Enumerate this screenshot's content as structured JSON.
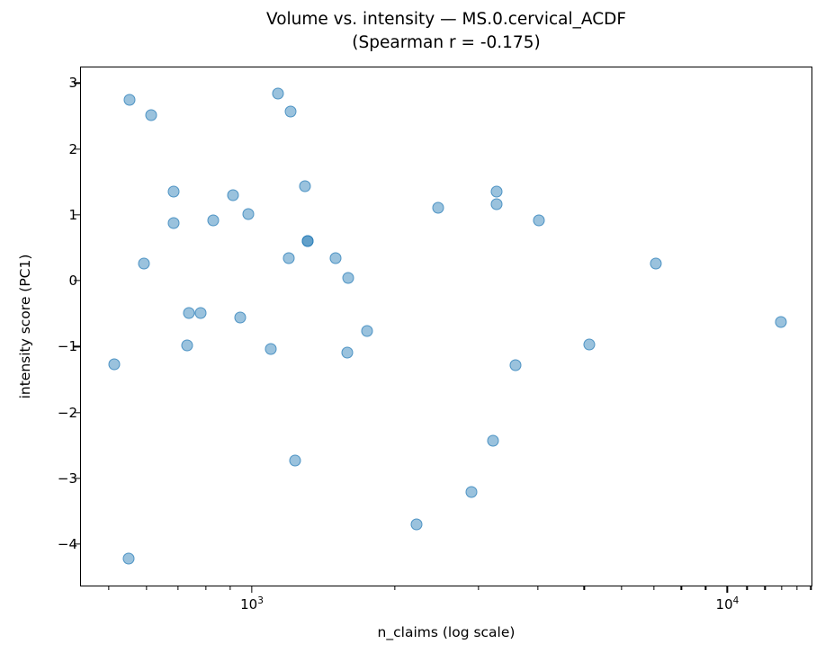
{
  "figure": {
    "title": "Volume vs. intensity — MS.0.cervical_ACDF",
    "subtitle": "(Spearman r = -0.175)"
  },
  "chart_data": {
    "type": "scatter",
    "title": "Volume vs. intensity — MS.0.cervical_ACDF",
    "subtitle": "(Spearman r = -0.175)",
    "xlabel": "n_claims (log scale)",
    "ylabel": "intensity score (PC1)",
    "x_scale": "log",
    "grid": false,
    "legend": false,
    "xlim": [
      435,
      15100
    ],
    "ylim": [
      -4.64,
      3.25
    ],
    "marker_color": "#1f77b4",
    "marker_fill": "rgba(31,119,180,0.45)",
    "marker_edge": "rgba(31,119,180,0.62)",
    "points": [
      [
        511,
        -1.25
      ],
      [
        548,
        -4.21
      ],
      [
        550,
        2.76
      ],
      [
        590,
        0.28
      ],
      [
        610,
        2.52
      ],
      [
        680,
        1.37
      ],
      [
        680,
        0.89
      ],
      [
        727,
        -0.97
      ],
      [
        735,
        -0.48
      ],
      [
        775,
        -0.48
      ],
      [
        825,
        0.93
      ],
      [
        910,
        1.31
      ],
      [
        940,
        -0.54
      ],
      [
        980,
        1.02
      ],
      [
        1090,
        -1.02
      ],
      [
        1130,
        2.85
      ],
      [
        1190,
        0.36
      ],
      [
        1200,
        2.58
      ],
      [
        1225,
        -2.72
      ],
      [
        1290,
        1.45
      ],
      [
        1305,
        0.62
      ],
      [
        1305,
        0.62
      ],
      [
        1490,
        0.35
      ],
      [
        1580,
        -1.08
      ],
      [
        1590,
        0.05
      ],
      [
        1740,
        -0.75
      ],
      [
        2210,
        -3.69
      ],
      [
        2455,
        1.12
      ],
      [
        2885,
        -3.19
      ],
      [
        3205,
        -2.41
      ],
      [
        3260,
        1.37
      ],
      [
        3260,
        1.17
      ],
      [
        3575,
        -1.27
      ],
      [
        4000,
        0.93
      ],
      [
        5110,
        -0.96
      ],
      [
        7055,
        0.27
      ],
      [
        12880,
        -0.61
      ]
    ],
    "y_ticks": [
      {
        "value": 3,
        "label": "3"
      },
      {
        "value": 2,
        "label": "2"
      },
      {
        "value": 1,
        "label": "1"
      },
      {
        "value": 0,
        "label": "0"
      },
      {
        "value": -1,
        "label": "−1"
      },
      {
        "value": -2,
        "label": "−2"
      },
      {
        "value": -3,
        "label": "−3"
      },
      {
        "value": -4,
        "label": "−4"
      }
    ],
    "x_major_ticks": [
      {
        "value": 1000,
        "mantissa": "10",
        "exponent": "3"
      },
      {
        "value": 10000,
        "mantissa": "10",
        "exponent": "4"
      }
    ],
    "x_minor_ticks": [
      500,
      600,
      700,
      800,
      900,
      2000,
      3000,
      4000,
      5000,
      6000,
      7000,
      8000,
      9000,
      11000,
      12000,
      13000,
      14000,
      15000
    ]
  }
}
